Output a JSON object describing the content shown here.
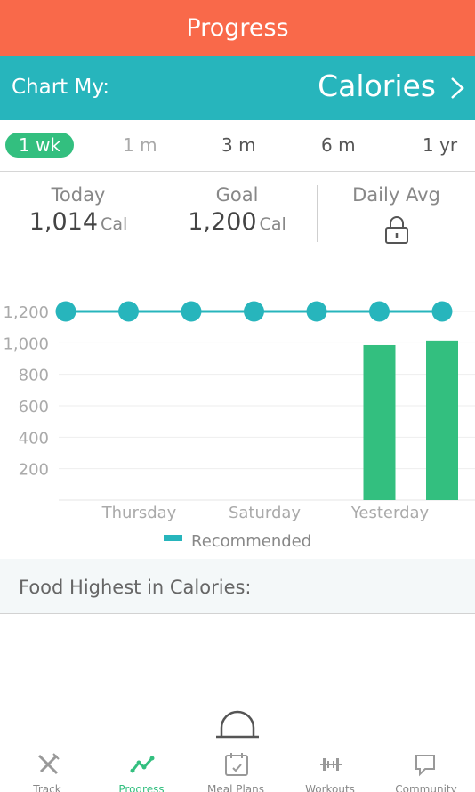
{
  "header": {
    "title": "Progress"
  },
  "chart_selector": {
    "label": "Chart My:",
    "value": "Calories"
  },
  "ranges": [
    {
      "label": "1 wk",
      "active": true
    },
    {
      "label": "1 m",
      "active": false
    },
    {
      "label": "3 m",
      "active": false
    },
    {
      "label": "6 m",
      "active": false
    },
    {
      "label": "1 yr",
      "active": false
    }
  ],
  "stats": {
    "today": {
      "title": "Today",
      "value": "1,014",
      "unit": "Cal"
    },
    "goal": {
      "title": "Goal",
      "value": "1,200",
      "unit": "Cal"
    },
    "daily_avg": {
      "title": "Daily Avg",
      "icon": "lock-icon"
    }
  },
  "chart_data": {
    "type": "bar",
    "categories": [
      "",
      "Thursday",
      "",
      "Saturday",
      "",
      "Yesterday",
      ""
    ],
    "series": [
      {
        "name": "",
        "type": "bar",
        "values": [
          0,
          0,
          0,
          0,
          0,
          985,
          1014
        ],
        "color": "#33bf7f"
      },
      {
        "name": "Recommended",
        "type": "line",
        "values": [
          1200,
          1200,
          1200,
          1200,
          1200,
          1200,
          1200
        ],
        "color": "#27b5bc"
      }
    ],
    "y_ticks": [
      "200",
      "400",
      "600",
      "800",
      "1,000",
      "1,200"
    ],
    "ylim": [
      0,
      1200
    ],
    "legend": "bottom-center",
    "grid": true
  },
  "food_section": {
    "title": "Food Highest in Calories:"
  },
  "tabs": [
    {
      "label": "Track",
      "icon": "fork-knife-icon",
      "active": false
    },
    {
      "label": "Progress",
      "icon": "progress-chart-icon",
      "active": true
    },
    {
      "label": "Meal Plans",
      "icon": "calendar-icon",
      "active": false
    },
    {
      "label": "Workouts",
      "icon": "dumbbell-icon",
      "active": false
    },
    {
      "label": "Community",
      "icon": "chat-bubble-icon",
      "active": false
    }
  ],
  "colors": {
    "header": "#f9694a",
    "accent": "#27b5bc",
    "bar": "#33bf7f"
  }
}
